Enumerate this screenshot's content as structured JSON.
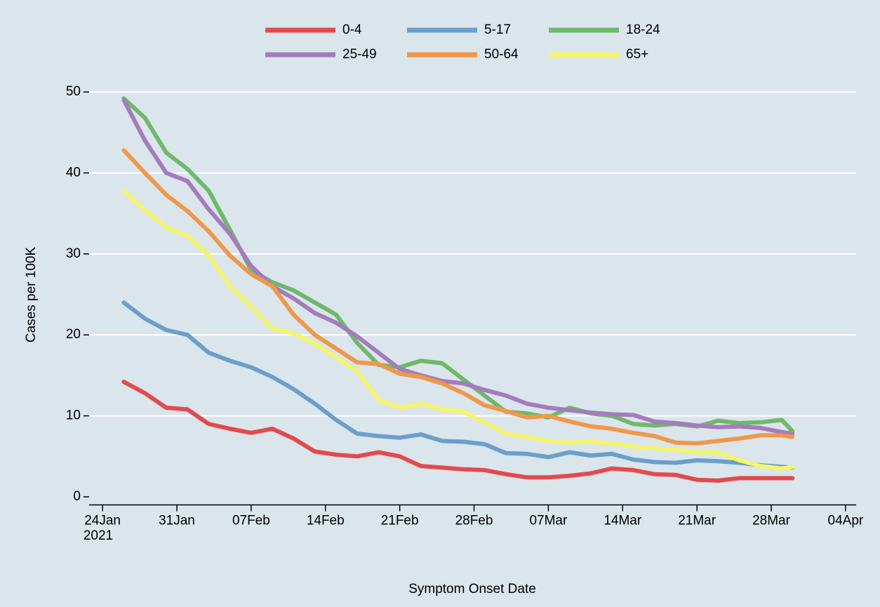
{
  "chart_data": {
    "type": "line",
    "x_label": "Symptom Onset Date",
    "y_label": "Cases per 100K",
    "x_year": "2021",
    "x": [
      "2021-01-26",
      "2021-01-28",
      "2021-01-30",
      "2021-02-01",
      "2021-02-03",
      "2021-02-05",
      "2021-02-07",
      "2021-02-09",
      "2021-02-11",
      "2021-02-13",
      "2021-02-15",
      "2021-02-17",
      "2021-02-19",
      "2021-02-21",
      "2021-02-23",
      "2021-02-25",
      "2021-02-27",
      "2021-03-01",
      "2021-03-03",
      "2021-03-05",
      "2021-03-07",
      "2021-03-09",
      "2021-03-11",
      "2021-03-13",
      "2021-03-15",
      "2021-03-17",
      "2021-03-19",
      "2021-03-21",
      "2021-03-23",
      "2021-03-25",
      "2021-03-27",
      "2021-03-29",
      "2021-03-30"
    ],
    "series": [
      {
        "name": "0-4",
        "color": "#e34a4e",
        "values": [
          14.2,
          12.8,
          11.0,
          10.8,
          9.0,
          8.4,
          7.9,
          8.4,
          7.2,
          5.6,
          5.2,
          5.0,
          5.5,
          5.0,
          3.8,
          3.6,
          3.4,
          3.3,
          2.8,
          2.4,
          2.4,
          2.6,
          2.9,
          3.5,
          3.3,
          2.8,
          2.7,
          2.1,
          2.0,
          2.3,
          2.3,
          2.3,
          2.3
        ]
      },
      {
        "name": "5-17",
        "color": "#6a9fcb",
        "values": [
          24.0,
          22.0,
          20.6,
          20.0,
          17.8,
          16.8,
          16.0,
          14.8,
          13.3,
          11.5,
          9.5,
          7.8,
          7.5,
          7.3,
          7.7,
          6.9,
          6.8,
          6.5,
          5.4,
          5.3,
          4.9,
          5.5,
          5.1,
          5.3,
          4.6,
          4.3,
          4.2,
          4.5,
          4.4,
          4.2,
          3.9,
          3.7,
          3.6
        ]
      },
      {
        "name": "18-24",
        "color": "#70b86b",
        "values": [
          49.2,
          46.8,
          42.5,
          40.5,
          37.8,
          33.0,
          28.0,
          26.5,
          25.5,
          24.0,
          22.5,
          19.0,
          16.3,
          16.0,
          16.8,
          16.5,
          14.5,
          12.5,
          10.5,
          10.3,
          9.8,
          11.0,
          10.3,
          10.0,
          9.0,
          8.8,
          9.0,
          8.7,
          9.4,
          9.1,
          9.2,
          9.5,
          8.1
        ]
      },
      {
        "name": "25-49",
        "color": "#a47cbc",
        "values": [
          49.0,
          44.0,
          40.0,
          39.0,
          35.5,
          32.5,
          28.5,
          26.0,
          24.5,
          22.7,
          21.5,
          19.8,
          17.8,
          15.8,
          15.0,
          14.3,
          14.0,
          13.2,
          12.5,
          11.5,
          11.0,
          10.7,
          10.4,
          10.2,
          10.1,
          9.3,
          9.1,
          8.8,
          8.6,
          8.7,
          8.5,
          8.0,
          7.8
        ]
      },
      {
        "name": "50-64",
        "color": "#f0984a",
        "values": [
          42.8,
          40.0,
          37.3,
          35.3,
          32.8,
          29.8,
          27.5,
          26.0,
          22.5,
          20.0,
          18.3,
          16.6,
          16.4,
          15.2,
          14.8,
          14.0,
          12.8,
          11.3,
          10.6,
          9.8,
          10.0,
          9.3,
          8.7,
          8.4,
          7.9,
          7.5,
          6.7,
          6.6,
          6.9,
          7.2,
          7.6,
          7.6,
          7.4
        ]
      },
      {
        "name": "65+",
        "color": "#f4f56a",
        "values": [
          37.8,
          35.4,
          33.3,
          32.2,
          29.8,
          26.0,
          23.5,
          20.8,
          20.2,
          18.9,
          17.2,
          15.5,
          12.0,
          11.0,
          11.5,
          10.8,
          10.5,
          9.2,
          7.8,
          7.4,
          6.9,
          6.7,
          6.8,
          6.6,
          6.2,
          6.0,
          5.8,
          5.5,
          5.5,
          4.5,
          3.8,
          3.5,
          3.7
        ]
      }
    ],
    "xlim": [
      "2021-01-23",
      "2021-04-05"
    ],
    "xticks": [
      {
        "value": "2021-01-24",
        "label": "24Jan"
      },
      {
        "value": "2021-01-31",
        "label": "31Jan"
      },
      {
        "value": "2021-02-07",
        "label": "07Feb"
      },
      {
        "value": "2021-02-14",
        "label": "14Feb"
      },
      {
        "value": "2021-02-21",
        "label": "21Feb"
      },
      {
        "value": "2021-02-28",
        "label": "28Feb"
      },
      {
        "value": "2021-03-07",
        "label": "07Mar"
      },
      {
        "value": "2021-03-14",
        "label": "14Mar"
      },
      {
        "value": "2021-03-21",
        "label": "21Mar"
      },
      {
        "value": "2021-03-28",
        "label": "28Mar"
      },
      {
        "value": "2021-04-04",
        "label": "04Apr"
      }
    ],
    "ylim": [
      -1,
      52
    ],
    "yticks": [
      0,
      10,
      20,
      30,
      40,
      50
    ],
    "grid": true
  }
}
